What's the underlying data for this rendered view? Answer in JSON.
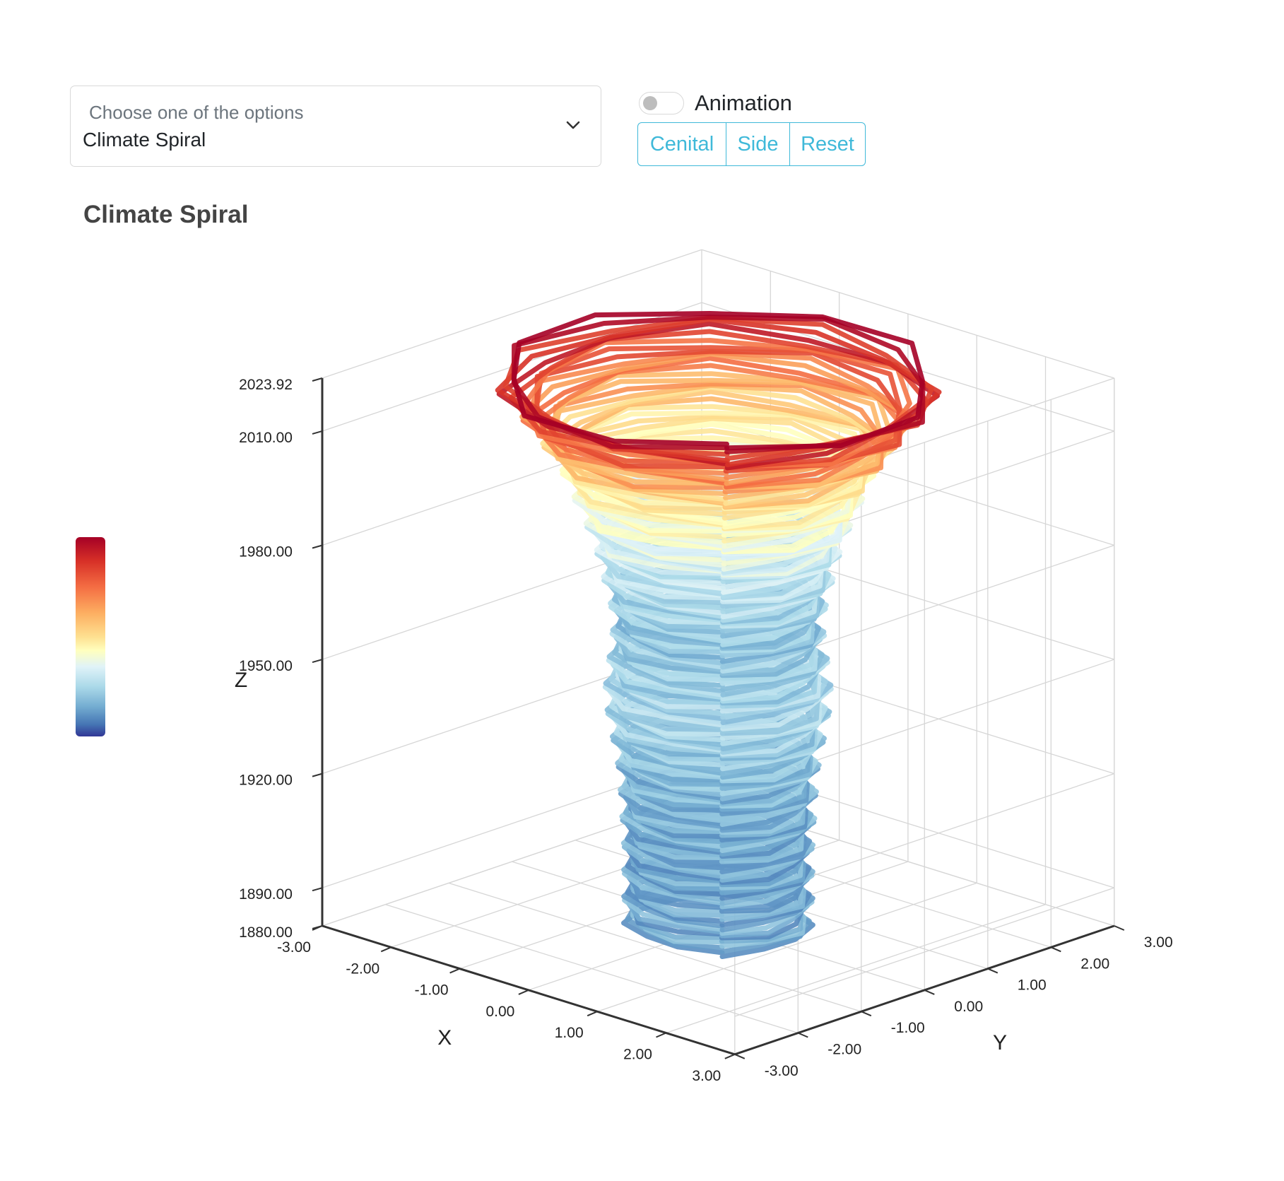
{
  "controls": {
    "select": {
      "placeholder": "Choose one of the options",
      "value": "Climate Spiral",
      "icon": "chevron-down-icon"
    },
    "animation_toggle": {
      "label": "Animation",
      "on": false
    },
    "view_buttons": [
      "Cenital",
      "Side",
      "Reset"
    ],
    "accent_color": "#3fb9d9"
  },
  "chart_data": {
    "type": "line3d",
    "title": "Climate Spiral",
    "xlabel": "X",
    "ylabel": "Y",
    "zlabel": "Z",
    "x_range": [
      -3,
      3
    ],
    "y_range": [
      -3,
      3
    ],
    "z_range": [
      1880,
      2023.92
    ],
    "x_ticks": [
      "-3.00",
      "-2.00",
      "-1.00",
      "0.00",
      "1.00",
      "2.00",
      "3.00"
    ],
    "y_ticks": [
      "-3.00",
      "-2.00",
      "-1.00",
      "0.00",
      "1.00",
      "2.00",
      "3.00"
    ],
    "z_ticks": [
      "1880.00",
      "1890.00",
      "1920.00",
      "1950.00",
      "1980.00",
      "2010.00",
      "2023.92"
    ],
    "colorscale": [
      "#313695",
      "#4575b4",
      "#74add1",
      "#abd9e9",
      "#e0f3f8",
      "#ffffbf",
      "#fee090",
      "#fdae61",
      "#f46d43",
      "#d73027",
      "#a50026"
    ],
    "colorbar": true,
    "grid": true,
    "points_per_year": 12,
    "years": [
      1880,
      2023
    ],
    "radius_by_year": [
      {
        "year": 1880,
        "radius": 0.95
      },
      {
        "year": 1900,
        "radius": 0.95
      },
      {
        "year": 1920,
        "radius": 1.0
      },
      {
        "year": 1940,
        "radius": 1.15
      },
      {
        "year": 1960,
        "radius": 1.05
      },
      {
        "year": 1980,
        "radius": 1.25
      },
      {
        "year": 2000,
        "radius": 1.6
      },
      {
        "year": 2015,
        "radius": 2.05
      },
      {
        "year": 2023,
        "radius": 2.35
      }
    ]
  }
}
